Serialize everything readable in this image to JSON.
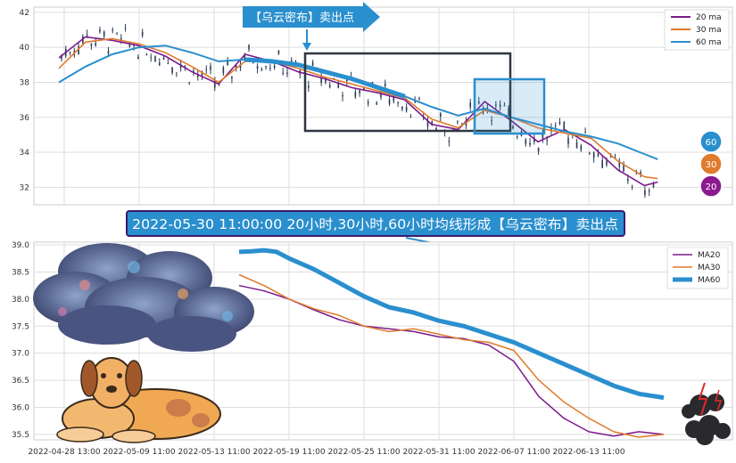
{
  "top_banner": {
    "text": "【乌云密布】卖出点"
  },
  "mid_banner": {
    "text": "2022-05-30 11:00:00 20小时,30小时,60小时均线形成【乌云密布】卖出点"
  },
  "colors": {
    "ma20": "#7b1a8a",
    "ma30": "#e07a2c",
    "ma60": "#2a8fce",
    "candle": "#2b3a55",
    "box": "#2f3640",
    "highlight": "#2a8fce",
    "grid": "#dddddd"
  },
  "badges": [
    {
      "label": "60",
      "color": "#2a8fce"
    },
    {
      "label": "30",
      "color": "#e07a2c"
    },
    {
      "label": "20",
      "color": "#8b1a8f"
    }
  ],
  "illustrations": [
    "storm-cloud",
    "dog",
    "dark-cloud-with-lightning"
  ],
  "chart_data": [
    {
      "type": "line",
      "panel": "top",
      "ylim": [
        31,
        42.3
      ],
      "yticks": [
        32,
        34,
        36,
        38,
        40,
        42
      ],
      "xlim": [
        0,
        48
      ],
      "legend": {
        "position": "top-right",
        "entries": [
          "20 ma",
          "30 ma",
          "60 ma"
        ]
      },
      "grid": true,
      "series": [
        {
          "name": "20 ma",
          "color": "#7b1a8a",
          "x": [
            0,
            2,
            4,
            6,
            8,
            10,
            12,
            14,
            16,
            18,
            20,
            22,
            24,
            26,
            28,
            30,
            32,
            34,
            36,
            38,
            40,
            42,
            44,
            45
          ],
          "values": [
            39.4,
            40.6,
            40.4,
            40.1,
            39.5,
            38.6,
            37.9,
            39.6,
            39.2,
            38.6,
            38.2,
            37.7,
            37.4,
            37.0,
            35.6,
            35.3,
            36.9,
            35.8,
            34.6,
            35.3,
            34.4,
            33.0,
            32.1,
            32.3
          ]
        },
        {
          "name": "30 ma",
          "color": "#e07a2c",
          "x": [
            0,
            2,
            4,
            6,
            8,
            10,
            12,
            14,
            16,
            18,
            20,
            22,
            24,
            26,
            28,
            30,
            32,
            34,
            36,
            38,
            40,
            42,
            44,
            45
          ],
          "values": [
            38.8,
            40.3,
            40.5,
            40.2,
            39.7,
            38.9,
            38.0,
            39.2,
            39.2,
            38.8,
            38.3,
            37.9,
            37.5,
            37.1,
            35.9,
            35.4,
            36.4,
            36.0,
            35.4,
            35.1,
            34.8,
            33.5,
            32.6,
            32.5
          ]
        },
        {
          "name": "60 ma",
          "color": "#2a8fce",
          "x": [
            0,
            2,
            4,
            6,
            8,
            10,
            12,
            14,
            16,
            18,
            20,
            22,
            24,
            26,
            28,
            30,
            32,
            34,
            36,
            38,
            40,
            42,
            44,
            45
          ],
          "values": [
            38.0,
            38.9,
            39.6,
            40.0,
            40.1,
            39.7,
            39.2,
            39.3,
            39.2,
            39.0,
            38.6,
            38.2,
            37.7,
            37.2,
            36.6,
            36.1,
            36.5,
            36.0,
            35.6,
            35.2,
            34.9,
            34.5,
            33.9,
            33.6
          ]
        }
      ]
    },
    {
      "type": "line",
      "panel": "bottom",
      "ylim": [
        35.4,
        39.05
      ],
      "yticks": [
        35.5,
        36.0,
        36.5,
        37.0,
        37.5,
        38.0,
        38.5,
        39.0
      ],
      "xlim": [
        0,
        50
      ],
      "xticks": [
        {
          "x": 0,
          "label": "2022-04-28 13:00"
        },
        {
          "x": 6,
          "label": "2022-05-09 11:00"
        },
        {
          "x": 12,
          "label": "2022-05-13 11:00"
        },
        {
          "x": 18,
          "label": "2022-05-19 11:00"
        },
        {
          "x": 24,
          "label": "2022-05-25 11:00"
        },
        {
          "x": 30,
          "label": "2022-05-31 11:00"
        },
        {
          "x": 36,
          "label": "2022-06-07 11:00"
        },
        {
          "x": 42,
          "label": "2022-06-13 11:00"
        }
      ],
      "legend": {
        "position": "top-right",
        "entries": [
          "MA20",
          "MA30",
          "MA60"
        ]
      },
      "grid": true,
      "series": [
        {
          "name": "MA20",
          "color": "#7b1a8a",
          "x": [
            14,
            16,
            18,
            20,
            22,
            24,
            26,
            28,
            30,
            32,
            34,
            36,
            38,
            40,
            42,
            44,
            46,
            48
          ],
          "values": [
            38.25,
            38.15,
            38.0,
            37.8,
            37.62,
            37.5,
            37.45,
            37.4,
            37.3,
            37.27,
            37.15,
            36.85,
            36.2,
            35.8,
            35.55,
            35.47,
            35.55,
            35.5
          ]
        },
        {
          "name": "MA30",
          "color": "#e07a2c",
          "x": [
            14,
            16,
            18,
            20,
            22,
            24,
            26,
            28,
            30,
            32,
            34,
            36,
            38,
            40,
            42,
            44,
            46,
            48
          ],
          "values": [
            38.45,
            38.25,
            38.0,
            37.82,
            37.7,
            37.5,
            37.4,
            37.45,
            37.35,
            37.25,
            37.2,
            37.05,
            36.5,
            36.1,
            35.8,
            35.55,
            35.45,
            35.5
          ]
        },
        {
          "name": "MA60",
          "color": "#2a8fce",
          "x": [
            14,
            15,
            16,
            17,
            18,
            20,
            22,
            24,
            26,
            28,
            30,
            32,
            34,
            36,
            38,
            40,
            42,
            44,
            46,
            48
          ],
          "values": [
            38.87,
            38.88,
            38.9,
            38.87,
            38.75,
            38.55,
            38.3,
            38.05,
            37.85,
            37.75,
            37.6,
            37.5,
            37.35,
            37.2,
            37.0,
            36.8,
            36.6,
            36.4,
            36.25,
            36.18
          ]
        }
      ]
    }
  ]
}
